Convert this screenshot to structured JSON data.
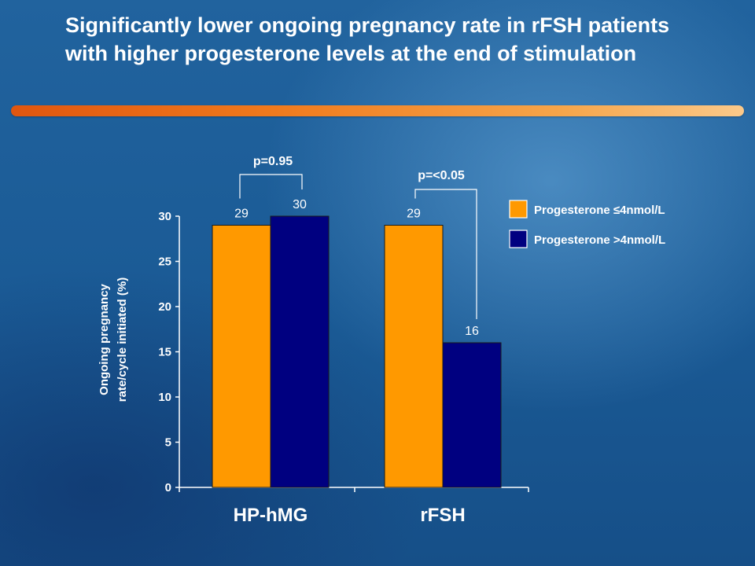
{
  "slide": {
    "title": "Significantly lower ongoing pregnancy rate in rFSH patients with higher progesterone levels at the end of stimulation"
  },
  "colors": {
    "series_low": "#ff9900",
    "series_high": "#000080",
    "accent_bar": "#f0791c"
  },
  "chart_data": {
    "type": "bar",
    "categories": [
      "HP-hMG",
      "rFSH"
    ],
    "series": [
      {
        "name": "Progesterone ≤4nmol/L",
        "values": [
          29,
          29
        ],
        "labels": [
          "29",
          "29"
        ]
      },
      {
        "name": "Progesterone >4nmol/L",
        "values": [
          30,
          16
        ],
        "labels": [
          "30",
          "16"
        ]
      }
    ],
    "ylabel_lines": [
      "Ongoing pregnancy",
      "rate/cycle initiated (%)"
    ],
    "ylim": [
      0,
      30
    ],
    "yticks": [
      "0",
      "5",
      "10",
      "15",
      "20",
      "25",
      "30"
    ],
    "grid": false,
    "legend_position": "right",
    "annotations": [
      "p=0.95",
      "p=<0.05"
    ]
  }
}
